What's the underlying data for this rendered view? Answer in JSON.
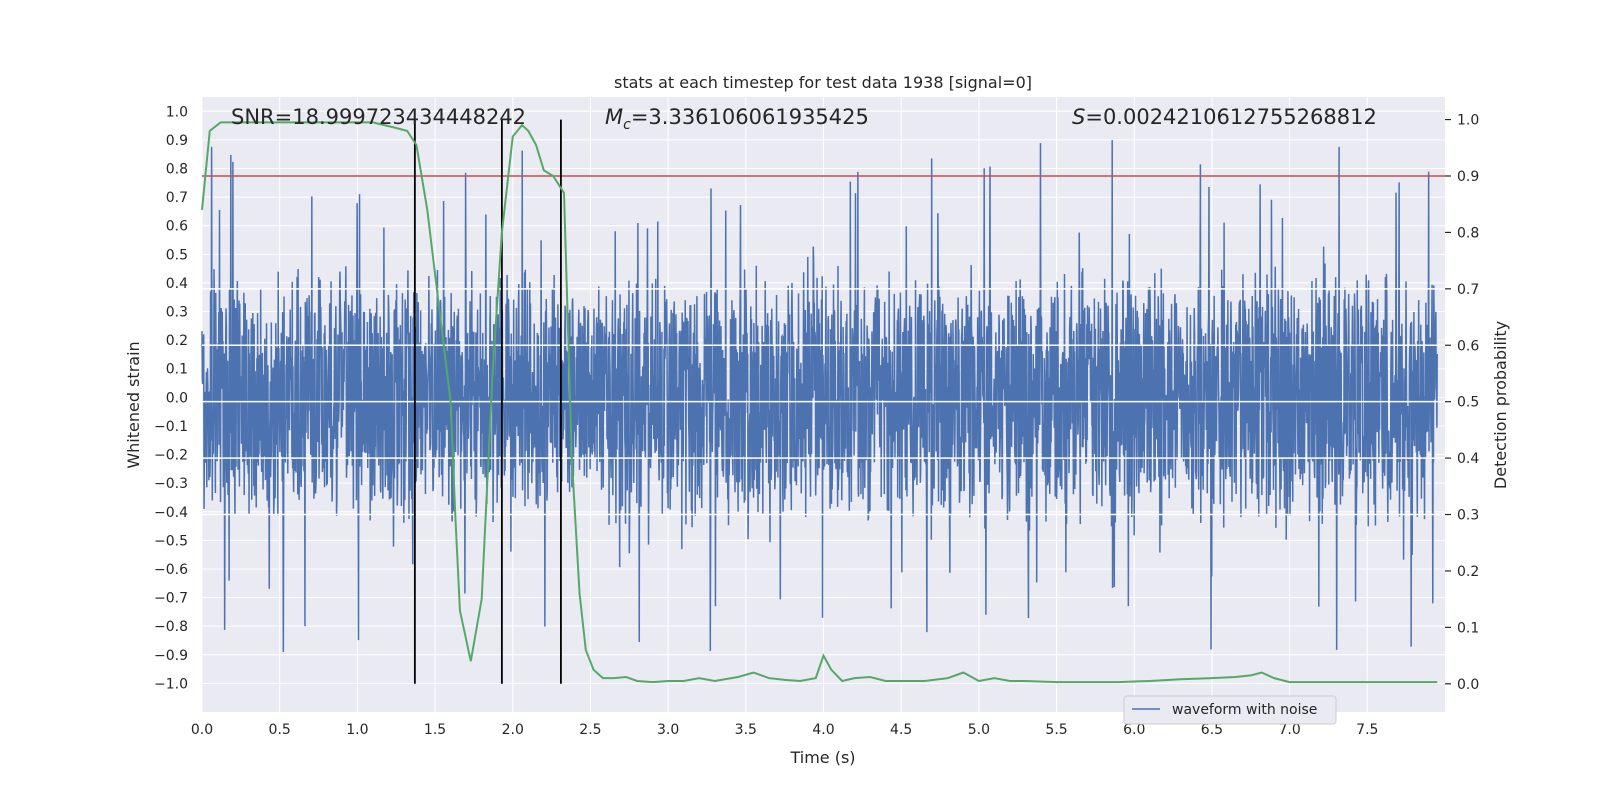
{
  "chart_data": {
    "type": "line",
    "title": "stats at each timestep for test data 1938 [signal=0]",
    "xlabel": "Time (s)",
    "ylabel_left": "Whitened strain",
    "ylabel_right": "Detection probability",
    "xlim": [
      0.0,
      8.0
    ],
    "ylim_left": [
      -1.1,
      1.05
    ],
    "ylim_right": [
      -0.05,
      1.04
    ],
    "x_ticks": [
      "0.0",
      "0.5",
      "1.0",
      "1.5",
      "2.0",
      "2.5",
      "3.0",
      "3.5",
      "4.0",
      "4.5",
      "5.0",
      "5.5",
      "6.0",
      "6.5",
      "7.0",
      "7.5"
    ],
    "y_left_ticks": [
      "1.0",
      "0.9",
      "0.8",
      "0.7",
      "0.6",
      "0.5",
      "0.4",
      "0.3",
      "0.2",
      "0.1",
      "0.0",
      "-0.1",
      "-0.2",
      "-0.3",
      "-0.4",
      "-0.5",
      "-0.6",
      "-0.7",
      "-0.8",
      "-0.9",
      "-1.0"
    ],
    "y_right_ticks": [
      "1.0",
      "0.9",
      "0.8",
      "0.7",
      "0.6",
      "0.5",
      "0.4",
      "0.3",
      "0.2",
      "0.1",
      "0.0"
    ],
    "annotations": {
      "snr": "SNR=18.999723434448242",
      "mc_symbol": "M",
      "mc_sub": "c",
      "mc_value": "=3.336106061935425",
      "s_symbol": "S",
      "s_value": "=0.0024210612755268812"
    },
    "series": [
      {
        "name": "waveform with noise",
        "axis": "left",
        "color": "#4c72b0",
        "style": "dense noise, amplitude ~0.35 with spikes to ~±0.9",
        "band": [
          -0.42,
          0.38
        ]
      },
      {
        "name": "detection probability",
        "axis": "right",
        "color": "#55a868",
        "x": [
          0.0,
          0.05,
          0.12,
          0.2,
          0.3,
          0.5,
          0.7,
          0.9,
          1.1,
          1.25,
          1.32,
          1.38,
          1.45,
          1.52,
          1.6,
          1.63,
          1.66,
          1.73,
          1.8,
          1.87,
          1.93,
          2.0,
          2.06,
          2.1,
          2.15,
          2.2,
          2.26,
          2.33,
          2.38,
          2.43,
          2.47,
          2.52,
          2.58,
          2.65,
          2.73,
          2.8,
          2.9,
          3.0,
          3.1,
          3.2,
          3.3,
          3.45,
          3.55,
          3.65,
          3.75,
          3.85,
          3.95,
          4.0,
          4.05,
          4.12,
          4.2,
          4.3,
          4.4,
          4.5,
          4.65,
          4.8,
          4.9,
          5.0,
          5.1,
          5.2,
          5.3,
          5.5,
          5.7,
          5.9,
          6.1,
          6.3,
          6.5,
          6.65,
          6.75,
          6.82,
          6.9,
          7.0,
          7.2,
          7.4,
          7.6,
          7.8,
          7.95
        ],
        "y": [
          0.84,
          0.98,
          0.995,
          0.995,
          0.995,
          0.995,
          0.995,
          0.995,
          0.995,
          0.985,
          0.98,
          0.955,
          0.84,
          0.68,
          0.5,
          0.3,
          0.13,
          0.04,
          0.15,
          0.55,
          0.8,
          0.97,
          0.99,
          0.98,
          0.955,
          0.91,
          0.9,
          0.87,
          0.4,
          0.16,
          0.06,
          0.025,
          0.01,
          0.01,
          0.012,
          0.005,
          0.003,
          0.005,
          0.005,
          0.01,
          0.005,
          0.012,
          0.02,
          0.01,
          0.007,
          0.005,
          0.01,
          0.05,
          0.025,
          0.005,
          0.01,
          0.012,
          0.005,
          0.005,
          0.005,
          0.01,
          0.02,
          0.005,
          0.01,
          0.005,
          0.005,
          0.003,
          0.003,
          0.003,
          0.005,
          0.008,
          0.01,
          0.012,
          0.015,
          0.02,
          0.01,
          0.003,
          0.003,
          0.003,
          0.003,
          0.003,
          0.003
        ]
      }
    ],
    "threshold": {
      "axis": "right",
      "value": 0.9,
      "color": "#c44e52"
    },
    "vertical_lines": {
      "x": [
        1.37,
        1.93,
        2.31
      ],
      "y_range_right": [
        0.0,
        1.0
      ],
      "color": "#000000"
    },
    "white_lines_right": [
      0.7,
      0.6,
      0.5,
      0.4,
      0.3
    ],
    "legend": {
      "placement": "lower-right",
      "entries": [
        "waveform with noise"
      ]
    }
  }
}
